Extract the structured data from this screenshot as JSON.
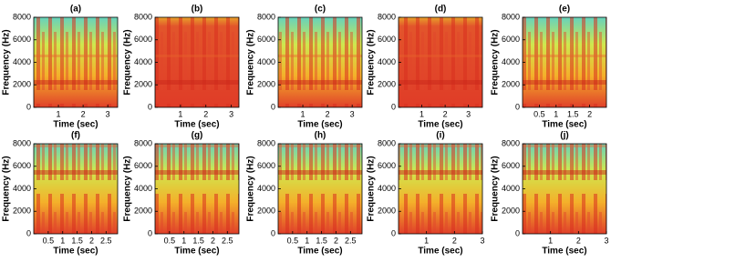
{
  "chart_data": [
    {
      "type": "heatmap",
      "title": "(a)",
      "xlabel": "Time (sec)",
      "ylabel": "Frequency (Hz)",
      "xlim": [
        0,
        3.4
      ],
      "ylim": [
        0,
        8000
      ],
      "xticks": [
        1,
        2,
        3
      ],
      "yticks": [
        0,
        2000,
        4000,
        6000,
        8000
      ]
    },
    {
      "type": "heatmap",
      "title": "(b)",
      "xlabel": "Time (sec)",
      "ylabel": "Frequency (Hz)",
      "xlim": [
        0,
        3.3
      ],
      "ylim": [
        0,
        8000
      ],
      "xticks": [
        1,
        2,
        3
      ],
      "yticks": [
        0,
        2000,
        4000,
        6000,
        8000
      ]
    },
    {
      "type": "heatmap",
      "title": "(c)",
      "xlabel": "Time (sec)",
      "ylabel": "Frequency (Hz)",
      "xlim": [
        0,
        3.4
      ],
      "ylim": [
        0,
        8000
      ],
      "xticks": [
        1,
        2,
        3
      ],
      "yticks": [
        0,
        2000,
        4000,
        6000,
        8000
      ]
    },
    {
      "type": "heatmap",
      "title": "(d)",
      "xlabel": "Time (sec)",
      "ylabel": "Frequency (Hz)",
      "xlim": [
        0,
        3.6
      ],
      "ylim": [
        0,
        8000
      ],
      "xticks": [
        1,
        2,
        3
      ],
      "yticks": [
        0,
        2000,
        4000,
        6000,
        8000
      ]
    },
    {
      "type": "heatmap",
      "title": "(e)",
      "xlabel": "Time (sec)",
      "ylabel": "Frequency (Hz)",
      "xlim": [
        0,
        2.5
      ],
      "ylim": [
        0,
        8000
      ],
      "xticks": [
        0.5,
        1,
        1.5,
        2
      ],
      "yticks": [
        0,
        2000,
        4000,
        6000,
        8000
      ]
    },
    {
      "type": "heatmap",
      "title": "(f)",
      "xlabel": "Time (sec)",
      "ylabel": "Frequency (Hz)",
      "xlim": [
        0,
        2.9
      ],
      "ylim": [
        0,
        8000
      ],
      "xticks": [
        0.5,
        1,
        1.5,
        2,
        2.5
      ],
      "yticks": [
        0,
        2000,
        4000,
        6000,
        8000
      ]
    },
    {
      "type": "heatmap",
      "title": "(g)",
      "xlabel": "Time (sec)",
      "ylabel": "Frequency (Hz)",
      "xlim": [
        0,
        2.9
      ],
      "ylim": [
        0,
        8000
      ],
      "xticks": [
        0.5,
        1,
        1.5,
        2,
        2.5
      ],
      "yticks": [
        0,
        2000,
        4000,
        6000,
        8000
      ]
    },
    {
      "type": "heatmap",
      "title": "(h)",
      "xlabel": "Time (sec)",
      "ylabel": "Frequency (Hz)",
      "xlim": [
        0,
        2.9
      ],
      "ylim": [
        0,
        8000
      ],
      "xticks": [
        0.5,
        1,
        1.5,
        2,
        2.5
      ],
      "yticks": [
        0,
        2000,
        4000,
        6000,
        8000
      ]
    },
    {
      "type": "heatmap",
      "title": "(i)",
      "xlabel": "Time (sec)",
      "ylabel": "Frequency (Hz)",
      "xlim": [
        0,
        3
      ],
      "ylim": [
        0,
        8000
      ],
      "xticks": [
        1,
        2,
        3
      ],
      "yticks": [
        0,
        2000,
        4000,
        6000,
        8000
      ]
    },
    {
      "type": "heatmap",
      "title": "(j)",
      "xlabel": "Time (sec)",
      "ylabel": "Frequency (Hz)",
      "xlim": [
        0,
        3
      ],
      "ylim": [
        0,
        8000
      ],
      "xticks": [
        1,
        2,
        3
      ],
      "yticks": [
        0,
        2000,
        4000,
        6000,
        8000
      ]
    }
  ]
}
